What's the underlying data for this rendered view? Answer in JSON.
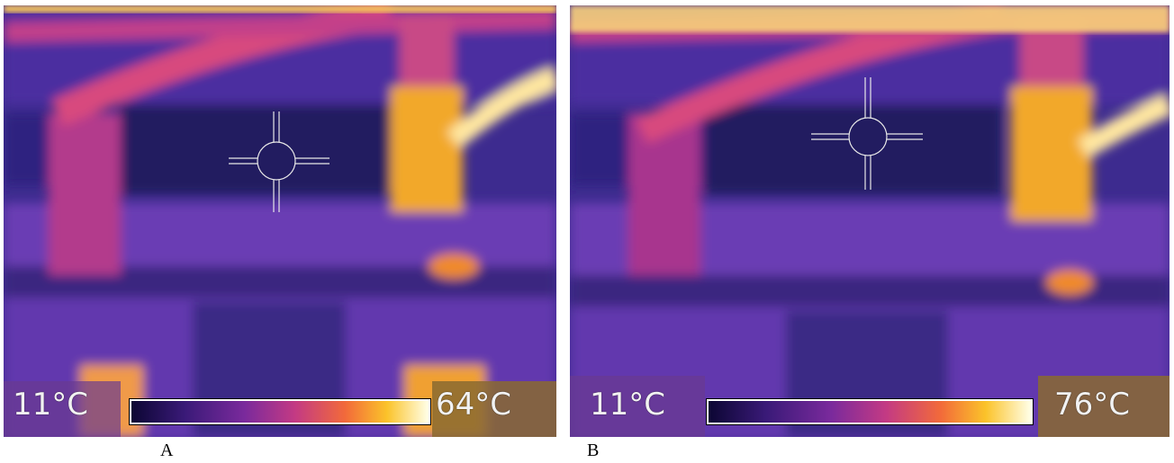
{
  "panels": [
    {
      "caption": "A",
      "min_temp": "11°C",
      "max_temp": "64°C",
      "icon": "crosshair-icon"
    },
    {
      "caption": "B",
      "min_temp": "11°C",
      "max_temp": "76°C",
      "icon": "crosshair-icon"
    }
  ],
  "colors": {
    "cold": "#2a1f6e",
    "mid": "#8a3fb0",
    "warm": "#d84a8a",
    "hot": "#f5b81c",
    "hottest": "#ffffe0"
  }
}
